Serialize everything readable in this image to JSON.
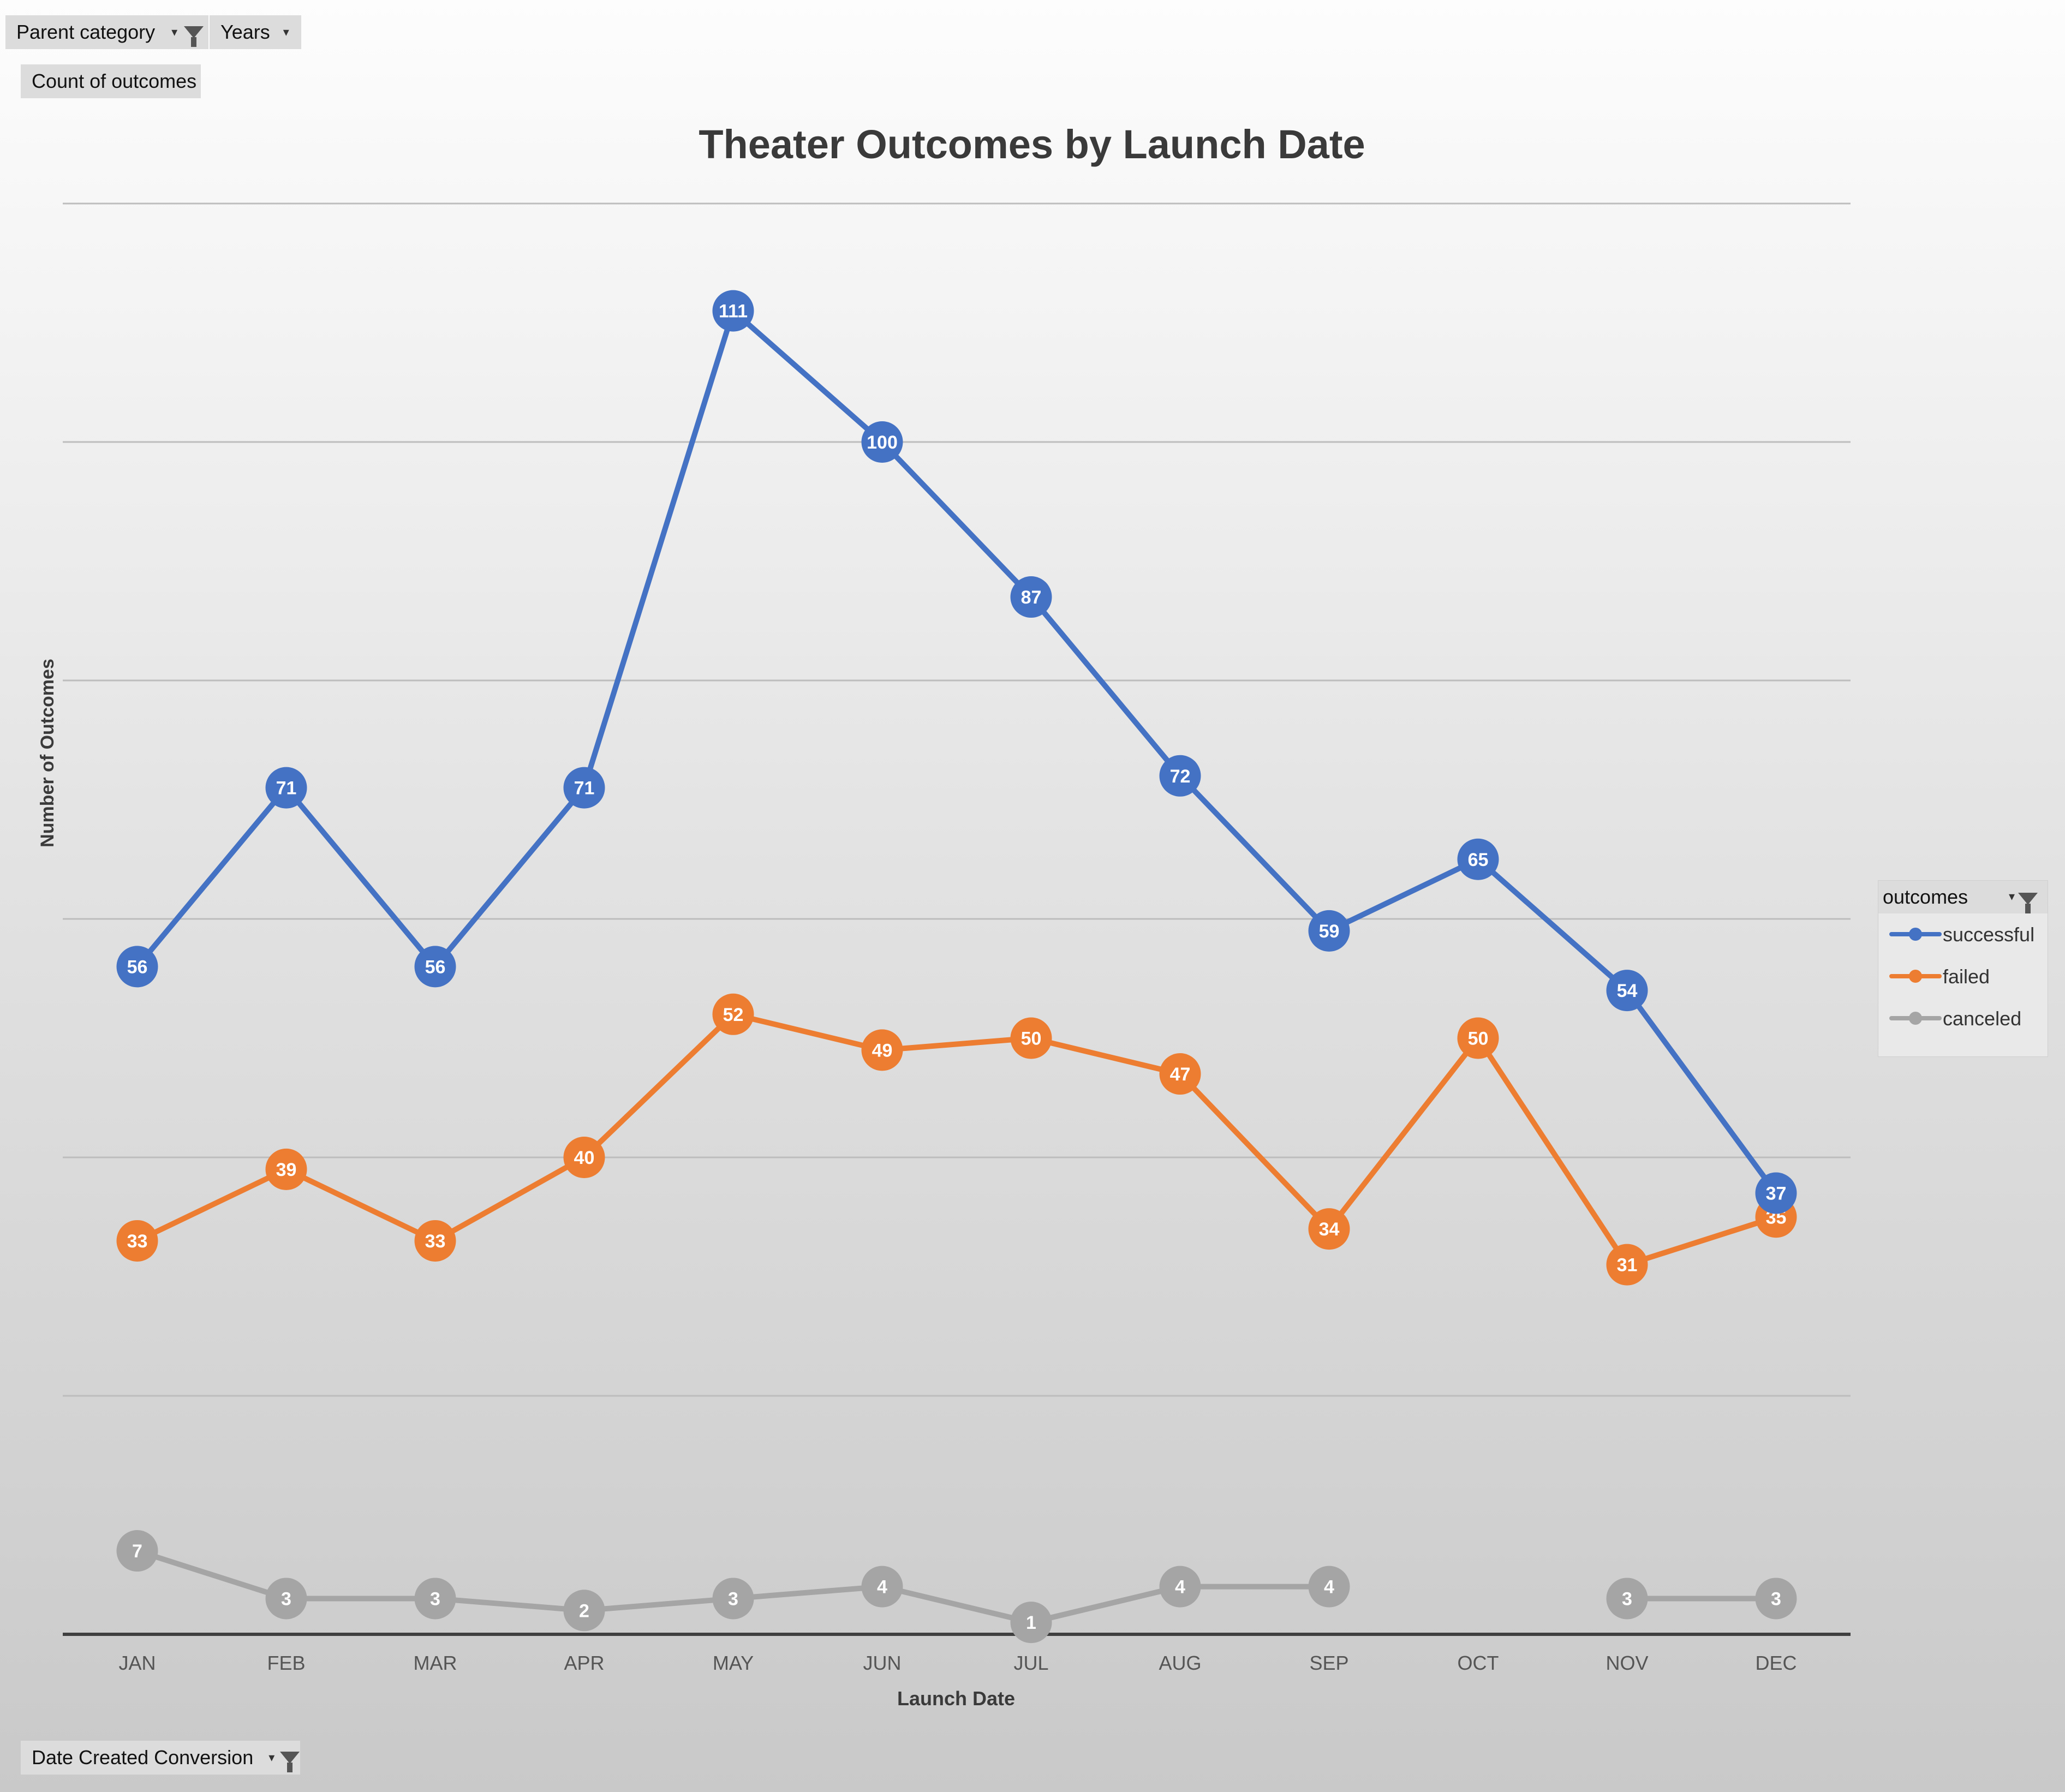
{
  "pivot": {
    "filter_parent_label": "Parent category",
    "filter_years_label": "Years",
    "value_field_label": "Count of outcomes",
    "axis_field_label": "Date Created Conversion",
    "legend_field_label": "outcomes"
  },
  "chart_data": {
    "type": "line",
    "title": "Theater Outcomes by Launch Date",
    "xlabel": "Launch Date",
    "ylabel": "Number of Outcomes",
    "categories": [
      "JAN",
      "FEB",
      "MAR",
      "APR",
      "MAY",
      "JUN",
      "JUL",
      "AUG",
      "SEP",
      "OCT",
      "NOV",
      "DEC"
    ],
    "series": [
      {
        "name": "successful",
        "color": "#4472c4",
        "values": [
          56,
          71,
          56,
          71,
          111,
          100,
          87,
          72,
          59,
          65,
          54,
          37
        ]
      },
      {
        "name": "failed",
        "color": "#ed7d31",
        "values": [
          33,
          39,
          33,
          40,
          52,
          49,
          50,
          47,
          34,
          50,
          31,
          35
        ]
      },
      {
        "name": "canceled",
        "color": "#a5a5a5",
        "values": [
          7,
          3,
          3,
          2,
          3,
          4,
          1,
          4,
          4,
          null,
          3,
          3
        ]
      }
    ],
    "ylim": [
      0,
      120
    ],
    "grid": true,
    "data_labels": true,
    "legend_position": "right"
  }
}
